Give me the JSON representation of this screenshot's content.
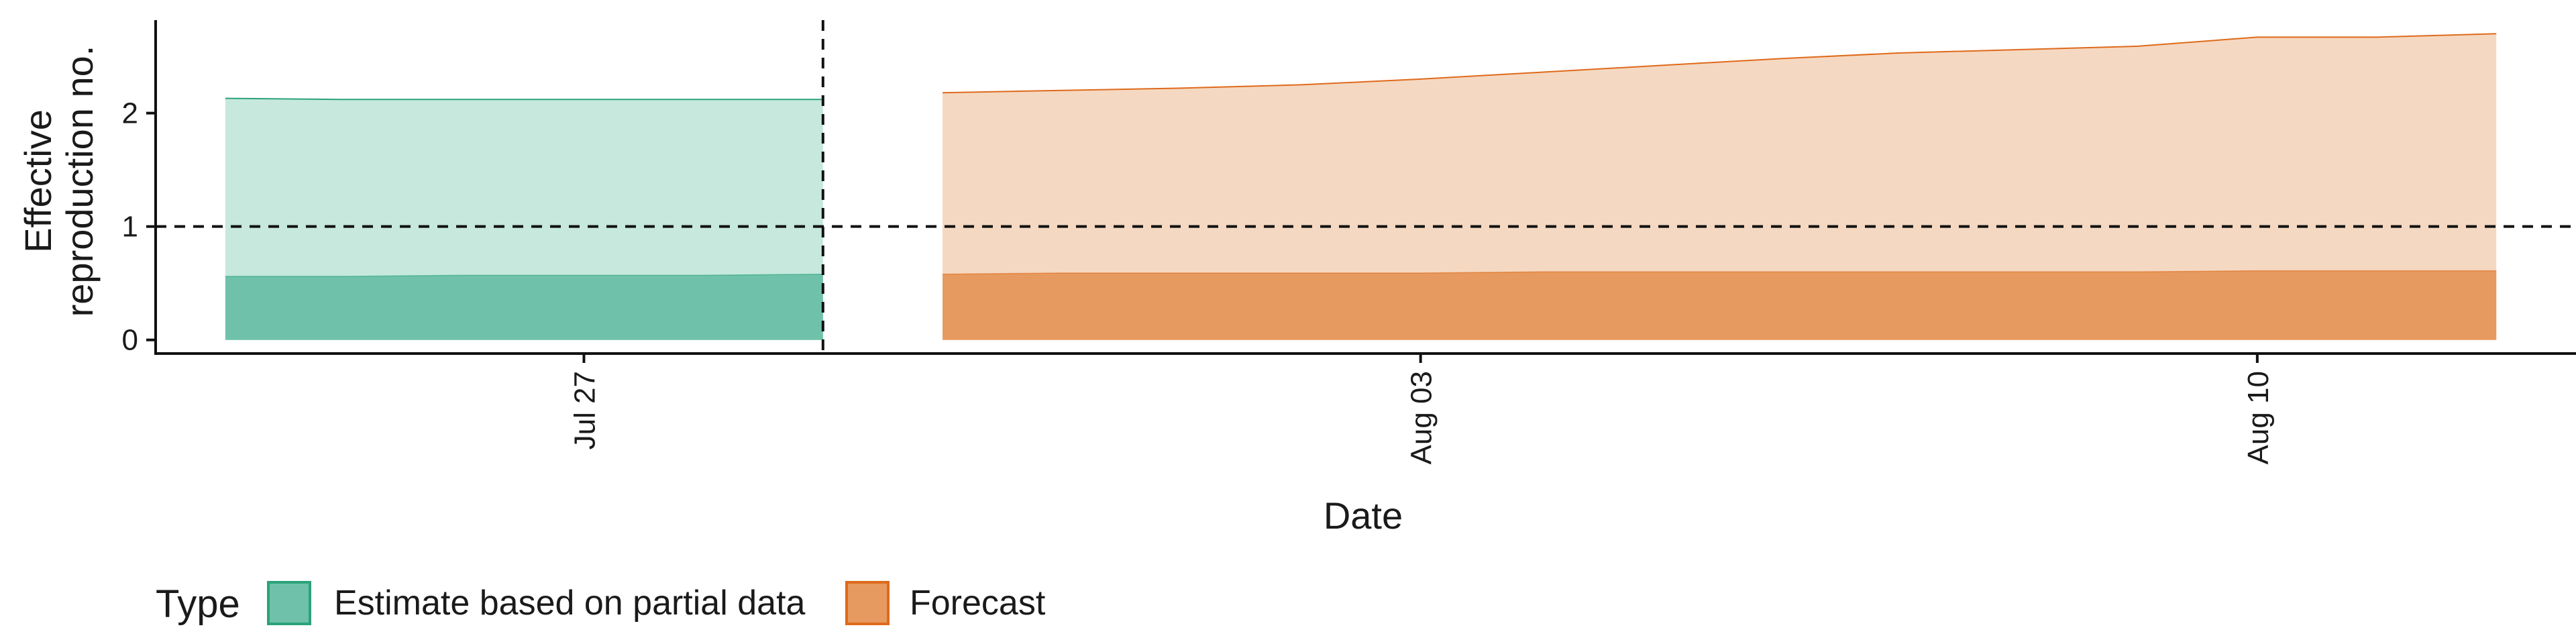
{
  "chart_data": {
    "type": "area",
    "xlabel": "Date",
    "ylabel_lines": [
      "Effective",
      "reproduction no."
    ],
    "x_ticks": [
      {
        "date": "2020-07-27",
        "label": "Jul 27"
      },
      {
        "date": "2020-08-03",
        "label": "Aug 03"
      },
      {
        "date": "2020-08-10",
        "label": "Aug 10"
      }
    ],
    "y_ticks": [
      0,
      1,
      2
    ],
    "xlim": [
      "2020-07-23T10:00",
      "2020-08-12T16:00"
    ],
    "ylim": [
      -0.12,
      2.82
    ],
    "reference_hline": 1,
    "reference_vline": "2020-07-29",
    "grid": false,
    "legend": {
      "position": "bottom-left",
      "title": "Type",
      "entries": [
        {
          "label": "Estimate based on partial data",
          "key": "estimate"
        },
        {
          "label": "Forecast",
          "key": "forecast"
        }
      ]
    },
    "series": [
      {
        "key": "estimate",
        "x": [
          "2020-07-24",
          "2020-07-25",
          "2020-07-26",
          "2020-07-27",
          "2020-07-28",
          "2020-07-29"
        ],
        "lower": [
          0,
          0,
          0,
          0,
          0,
          0
        ],
        "mid": [
          0.56,
          0.56,
          0.57,
          0.57,
          0.57,
          0.58
        ],
        "upper": [
          2.13,
          2.12,
          2.12,
          2.12,
          2.12,
          2.12
        ],
        "light_color": "#c6e8dd",
        "dark_color": "#6fc2a9",
        "line_color": "#2ca27a"
      },
      {
        "key": "forecast",
        "x": [
          "2020-07-30",
          "2020-07-31",
          "2020-08-01",
          "2020-08-02",
          "2020-08-03",
          "2020-08-04",
          "2020-08-05",
          "2020-08-06",
          "2020-08-07",
          "2020-08-08",
          "2020-08-09",
          "2020-08-10",
          "2020-08-11",
          "2020-08-12"
        ],
        "lower": [
          0,
          0,
          0,
          0,
          0,
          0,
          0,
          0,
          0,
          0,
          0,
          0,
          0,
          0
        ],
        "mid": [
          0.58,
          0.59,
          0.59,
          0.59,
          0.59,
          0.6,
          0.6,
          0.6,
          0.6,
          0.6,
          0.6,
          0.61,
          0.61,
          0.61
        ],
        "upper": [
          2.18,
          2.2,
          2.22,
          2.25,
          2.3,
          2.36,
          2.42,
          2.48,
          2.53,
          2.56,
          2.59,
          2.67,
          2.67,
          2.7
        ],
        "light_color": "#f5d8c1",
        "dark_color": "#e69a5f",
        "line_color": "#de6a1c"
      }
    ]
  }
}
